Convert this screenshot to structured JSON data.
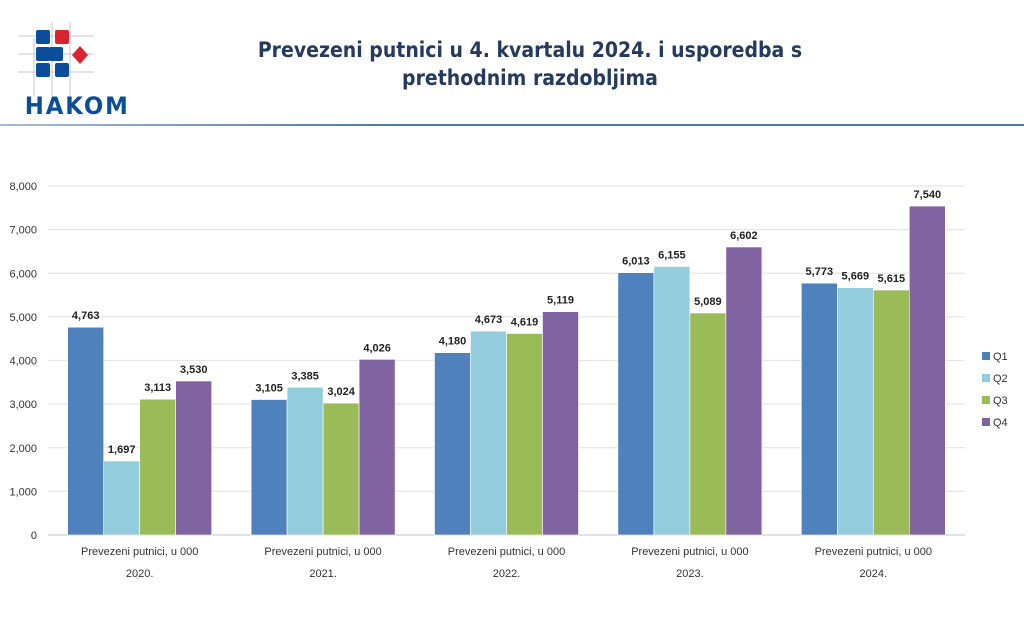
{
  "header": {
    "logo_text": "HAKOM",
    "title_line1": "Prevezeni putnici u 4. kvartalu 2024. i usporedba s",
    "title_line2": "prethodnim razdobljima"
  },
  "chart_data": {
    "type": "bar",
    "title": "Prevezeni putnici u 4. kvartalu 2024. i usporedba s prethodnim razdobljima",
    "categories": [
      "2020.",
      "2021.",
      "2022.",
      "2023.",
      "2024."
    ],
    "category_sublabel": "Prevezeni putnici, u 000",
    "ylim": [
      0,
      8000
    ],
    "yticks": [
      0,
      1000,
      2000,
      3000,
      4000,
      5000,
      6000,
      7000,
      8000
    ],
    "ytick_labels": [
      "0",
      "1,000",
      "2,000",
      "3,000",
      "4,000",
      "5,000",
      "6,000",
      "7,000",
      "8,000"
    ],
    "grid": true,
    "legend_position": "right",
    "series": [
      {
        "name": "Q1",
        "color": "#4f81bd",
        "values": [
          4763,
          3105,
          4180,
          6013,
          5773
        ],
        "labels": [
          "4,763",
          "3,105",
          "4,180",
          "6,013",
          "5,773"
        ]
      },
      {
        "name": "Q2",
        "color": "#93cddd",
        "values": [
          1697,
          3385,
          4673,
          6155,
          5669
        ],
        "labels": [
          "1,697",
          "3,385",
          "4,673",
          "6,155",
          "5,669"
        ]
      },
      {
        "name": "Q3",
        "color": "#9bbb59",
        "values": [
          3113,
          3024,
          4619,
          5089,
          5615
        ],
        "labels": [
          "3,113",
          "3,024",
          "4,619",
          "5,089",
          "5,615"
        ]
      },
      {
        "name": "Q4",
        "color": "#8064a2",
        "values": [
          3530,
          4026,
          5119,
          6602,
          7540
        ],
        "labels": [
          "3,530",
          "4,026",
          "5,119",
          "6,602",
          "7,540"
        ]
      }
    ]
  }
}
